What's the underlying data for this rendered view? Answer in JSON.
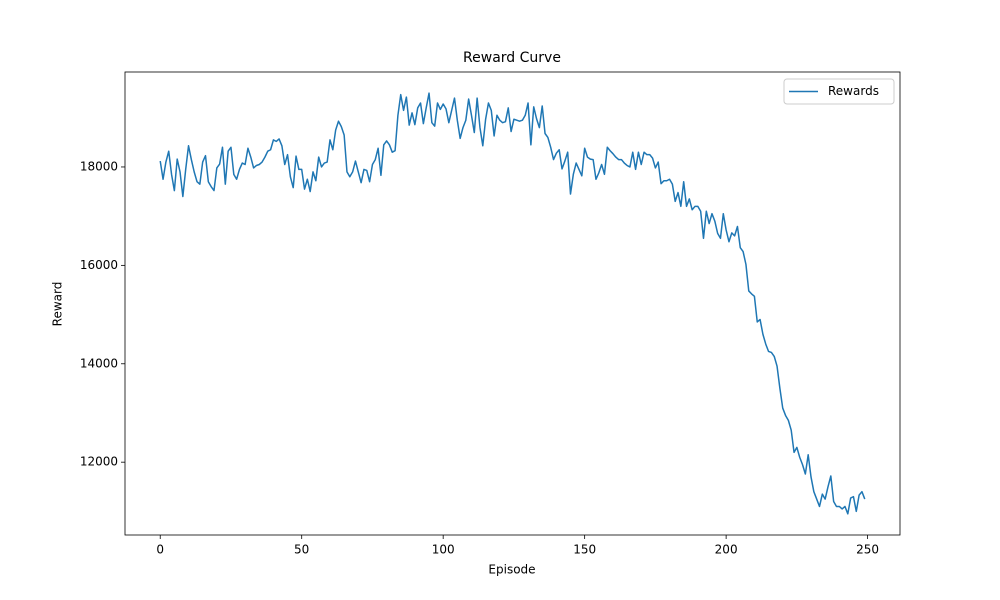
{
  "chart_data": {
    "type": "line",
    "title": "Reward Curve",
    "xlabel": "Episode",
    "ylabel": "Reward",
    "x": [
      0,
      1,
      2,
      3,
      4,
      5,
      6,
      7,
      8,
      9,
      10,
      11,
      12,
      13,
      14,
      15,
      16,
      17,
      18,
      19,
      20,
      21,
      22,
      23,
      24,
      25,
      26,
      27,
      28,
      29,
      30,
      31,
      32,
      33,
      34,
      35,
      36,
      37,
      38,
      39,
      40,
      41,
      42,
      43,
      44,
      45,
      46,
      47,
      48,
      49,
      50,
      51,
      52,
      53,
      54,
      55,
      56,
      57,
      58,
      59,
      60,
      61,
      62,
      63,
      64,
      65,
      66,
      67,
      68,
      69,
      70,
      71,
      72,
      73,
      74,
      75,
      76,
      77,
      78,
      79,
      80,
      81,
      82,
      83,
      84,
      85,
      86,
      87,
      88,
      89,
      90,
      91,
      92,
      93,
      94,
      95,
      96,
      97,
      98,
      99,
      100,
      101,
      102,
      103,
      104,
      105,
      106,
      107,
      108,
      109,
      110,
      111,
      112,
      113,
      114,
      115,
      116,
      117,
      118,
      119,
      120,
      121,
      122,
      123,
      124,
      125,
      126,
      127,
      128,
      129,
      130,
      131,
      132,
      133,
      134,
      135,
      136,
      137,
      138,
      139,
      140,
      141,
      142,
      143,
      144,
      145,
      146,
      147,
      148,
      149,
      150,
      151,
      152,
      153,
      154,
      155,
      156,
      157,
      158,
      159,
      160,
      161,
      162,
      163,
      164,
      165,
      166,
      167,
      168,
      169,
      170,
      171,
      172,
      173,
      174,
      175,
      176,
      177,
      178,
      179,
      180,
      181,
      182,
      183,
      184,
      185,
      186,
      187,
      188,
      189,
      190,
      191,
      192,
      193,
      194,
      195,
      196,
      197,
      198,
      199,
      200,
      201,
      202,
      203,
      204,
      205,
      206,
      207,
      208,
      209,
      210,
      211,
      212,
      213,
      214,
      215,
      216,
      217,
      218,
      219,
      220,
      221,
      222,
      223,
      224,
      225,
      226,
      227,
      228,
      229,
      230,
      231,
      232,
      233,
      234,
      235,
      236,
      237,
      238,
      239,
      240,
      241,
      242,
      243,
      244,
      245,
      246,
      247,
      248,
      249
    ],
    "series": [
      {
        "name": "Rewards",
        "color": "#1f77b4",
        "values": [
          18120,
          17750,
          18100,
          18320,
          17850,
          17520,
          18160,
          17900,
          17400,
          17950,
          18430,
          18150,
          17900,
          17700,
          17650,
          18100,
          18230,
          17700,
          17600,
          17520,
          17980,
          18060,
          18400,
          17650,
          18320,
          18400,
          17850,
          17750,
          17950,
          18080,
          18050,
          18380,
          18200,
          17980,
          18030,
          18050,
          18100,
          18200,
          18320,
          18350,
          18550,
          18520,
          18570,
          18430,
          18050,
          18250,
          17800,
          17580,
          18220,
          17950,
          17950,
          17550,
          17750,
          17500,
          17900,
          17720,
          18200,
          18000,
          18080,
          18100,
          18550,
          18350,
          18750,
          18930,
          18820,
          18650,
          17900,
          17800,
          17900,
          18120,
          17900,
          17680,
          17950,
          17930,
          17700,
          18050,
          18150,
          18380,
          17830,
          18450,
          18530,
          18450,
          18300,
          18330,
          19050,
          19470,
          19150,
          19420,
          18850,
          19100,
          18860,
          19200,
          19300,
          18880,
          19200,
          19500,
          18900,
          18830,
          19300,
          19170,
          19280,
          19180,
          18900,
          19150,
          19400,
          18950,
          18580,
          18800,
          18950,
          19380,
          19050,
          18700,
          19400,
          18800,
          18430,
          18970,
          19300,
          19150,
          18630,
          19050,
          18950,
          18900,
          18920,
          19200,
          18720,
          18970,
          18950,
          18930,
          18950,
          19050,
          19300,
          18450,
          19220,
          18980,
          18800,
          19240,
          18680,
          18600,
          18400,
          18150,
          18280,
          18350,
          17960,
          18120,
          18300,
          17450,
          17850,
          18080,
          17950,
          17820,
          18380,
          18200,
          18160,
          18150,
          17750,
          17880,
          18050,
          17850,
          18400,
          18330,
          18270,
          18200,
          18150,
          18150,
          18080,
          18030,
          18000,
          18300,
          17950,
          18300,
          18050,
          18300,
          18250,
          18250,
          18180,
          17980,
          18100,
          17660,
          17720,
          17720,
          17750,
          17650,
          17300,
          17480,
          17200,
          17700,
          17200,
          17350,
          17130,
          17200,
          17200,
          17100,
          16550,
          17100,
          16850,
          17050,
          16900,
          16650,
          16550,
          17050,
          16720,
          16480,
          16660,
          16600,
          16790,
          16360,
          16280,
          16020,
          15480,
          15420,
          15370,
          14850,
          14900,
          14600,
          14400,
          14250,
          14230,
          14150,
          13950,
          13500,
          13100,
          12950,
          12850,
          12650,
          12200,
          12300,
          12100,
          11950,
          11760,
          12150,
          11700,
          11400,
          11250,
          11100,
          11350,
          11250,
          11500,
          11720,
          11200,
          11100,
          11100,
          11050,
          11100,
          10950,
          11270,
          11300,
          11000,
          11330,
          11400,
          11250
        ]
      }
    ],
    "xlim": [
      -12.45,
      261.45
    ],
    "ylim": [
      10520,
      19930
    ],
    "xticks": [
      0,
      50,
      100,
      150,
      200,
      250
    ],
    "yticks": [
      12000,
      14000,
      16000,
      18000
    ],
    "legend": "upper right"
  }
}
